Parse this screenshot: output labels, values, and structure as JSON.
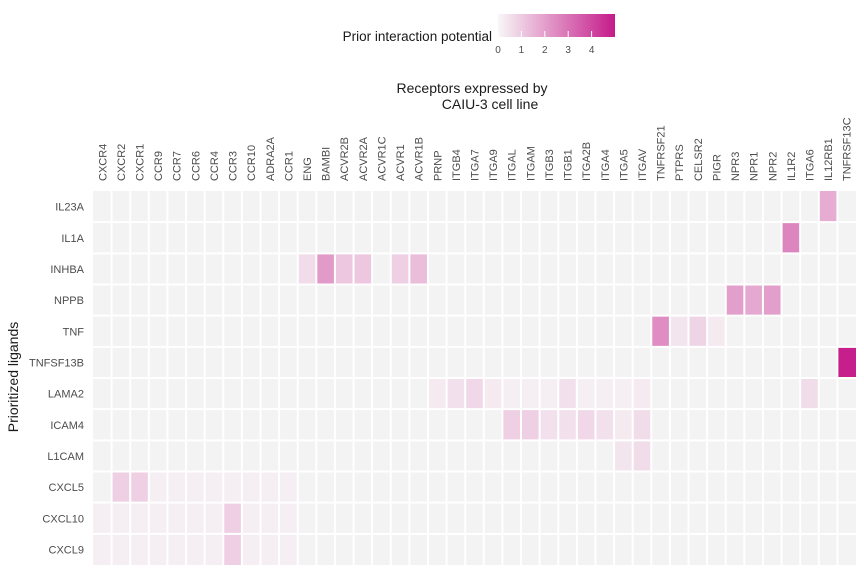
{
  "chart_data": {
    "type": "heatmap",
    "title_lines": [
      "Receptors expressed by",
      "CAIU-3 cell line"
    ],
    "ylabel": "Prioritized ligands",
    "xlabel": "",
    "legend": {
      "title": "Prior interaction potential",
      "position": "top",
      "range": [
        0,
        5
      ],
      "ticks": [
        0,
        1,
        2,
        3,
        4
      ],
      "low_color": "#f7f7f7",
      "high_color": "#c51b8a"
    },
    "background_color": "#f3f3f3",
    "grid_color": "#ffffff",
    "x": [
      "CXCR4",
      "CXCR2",
      "CXCR1",
      "CCR9",
      "CCR7",
      "CCR6",
      "CCR4",
      "CCR3",
      "CCR10",
      "ADRA2A",
      "CCR1",
      "ENG",
      "BAMBI",
      "ACVR2B",
      "ACVR2A",
      "ACVR1C",
      "ACVR1",
      "ACVR1B",
      "PRNP",
      "ITGB4",
      "ITGA7",
      "ITGA9",
      "ITGAL",
      "ITGAM",
      "ITGB3",
      "ITGB1",
      "ITGA2B",
      "ITGA4",
      "ITGA5",
      "ITGAV",
      "TNFRSF21",
      "PTPRS",
      "CELSR2",
      "PIGR",
      "NPR3",
      "NPR1",
      "NPR2",
      "IL1R2",
      "ITGA6",
      "IL12RB1",
      "TNFRSF13C"
    ],
    "y": [
      "IL23A",
      "IL1A",
      "INHBA",
      "NPPB",
      "TNF",
      "TNFSF13B",
      "LAMA2",
      "ICAM4",
      "L1CAM",
      "CXCL5",
      "CXCL10",
      "CXCL9"
    ],
    "values": [
      [
        0,
        0,
        0,
        0,
        0,
        0,
        0,
        0,
        0,
        0,
        0,
        0,
        0,
        0,
        0,
        0,
        0,
        0,
        0,
        0,
        0,
        0,
        0,
        0,
        0,
        0,
        0,
        0,
        0,
        0,
        0,
        0,
        0,
        0,
        0,
        0,
        0,
        0,
        0,
        1.7,
        0
      ],
      [
        0,
        0,
        0,
        0,
        0,
        0,
        0,
        0,
        0,
        0,
        0,
        0,
        0,
        0,
        0,
        0,
        0,
        0,
        0,
        0,
        0,
        0,
        0,
        0,
        0,
        0,
        0,
        0,
        0,
        0,
        0,
        0,
        0,
        0,
        0,
        0,
        0,
        2.6,
        0,
        0,
        0
      ],
      [
        0,
        0,
        0,
        0,
        0,
        0,
        0,
        0,
        0,
        0,
        0,
        0.6,
        2.1,
        1.1,
        1.1,
        0,
        0.9,
        1.3,
        0,
        0,
        0,
        0,
        0,
        0,
        0,
        0,
        0,
        0,
        0,
        0,
        0,
        0,
        0,
        0,
        0,
        0,
        0,
        0,
        0,
        0,
        0
      ],
      [
        0,
        0,
        0,
        0,
        0,
        0,
        0,
        0,
        0,
        0,
        0,
        0,
        0,
        0,
        0,
        0,
        0,
        0,
        0,
        0,
        0,
        0,
        0,
        0,
        0,
        0,
        0,
        0,
        0,
        0,
        0,
        0,
        0,
        0,
        2.0,
        1.8,
        2.0,
        0,
        0,
        0,
        0
      ],
      [
        0,
        0,
        0,
        0,
        0,
        0,
        0,
        0,
        0,
        0,
        0,
        0,
        0,
        0,
        0,
        0,
        0,
        0,
        0,
        0,
        0,
        0,
        0,
        0,
        0,
        0,
        0,
        0,
        0,
        0,
        2.4,
        0.4,
        0.8,
        0.3,
        0,
        0,
        0,
        0,
        0,
        0,
        0
      ],
      [
        0,
        0,
        0,
        0,
        0,
        0,
        0,
        0,
        0,
        0,
        0,
        0,
        0,
        0,
        0,
        0,
        0,
        0,
        0,
        0,
        0,
        0,
        0,
        0,
        0,
        0,
        0,
        0,
        0,
        0,
        0,
        0,
        0,
        0,
        0,
        0,
        0,
        0,
        0,
        0,
        4.9
      ],
      [
        0,
        0,
        0,
        0,
        0,
        0,
        0,
        0,
        0,
        0,
        0,
        0,
        0,
        0,
        0,
        0,
        0,
        0,
        0.3,
        0.5,
        0.7,
        0.3,
        0.2,
        0.2,
        0.2,
        0.5,
        0.2,
        0.2,
        0.2,
        0.3,
        0,
        0,
        0,
        0,
        0,
        0,
        0,
        0,
        0.6,
        0,
        0
      ],
      [
        0,
        0,
        0,
        0,
        0,
        0,
        0,
        0,
        0,
        0,
        0,
        0,
        0,
        0,
        0,
        0,
        0,
        0,
        0,
        0,
        0,
        0,
        0.9,
        0.9,
        0.5,
        0.5,
        0.7,
        0.5,
        0.3,
        0.6,
        0,
        0,
        0,
        0,
        0,
        0,
        0,
        0,
        0,
        0,
        0
      ],
      [
        0,
        0,
        0,
        0,
        0,
        0,
        0,
        0,
        0,
        0,
        0,
        0,
        0,
        0,
        0,
        0,
        0,
        0,
        0,
        0,
        0,
        0,
        0,
        0,
        0,
        0,
        0,
        0,
        0.4,
        0.6,
        0,
        0,
        0,
        0,
        0,
        0,
        0,
        0,
        0,
        0,
        0
      ],
      [
        0,
        0.9,
        0.9,
        0.2,
        0.2,
        0.2,
        0.2,
        0.2,
        0.2,
        0.2,
        0.2,
        0,
        0,
        0,
        0,
        0,
        0,
        0,
        0,
        0,
        0,
        0,
        0,
        0,
        0,
        0,
        0,
        0,
        0,
        0,
        0,
        0,
        0,
        0,
        0,
        0,
        0,
        0,
        0,
        0,
        0
      ],
      [
        0.2,
        0.2,
        0.2,
        0.2,
        0.2,
        0.2,
        0.2,
        0.9,
        0.2,
        0.2,
        0.2,
        0,
        0,
        0,
        0,
        0,
        0,
        0,
        0,
        0,
        0,
        0,
        0,
        0,
        0,
        0,
        0,
        0,
        0,
        0,
        0,
        0,
        0,
        0,
        0,
        0,
        0,
        0,
        0,
        0,
        0
      ],
      [
        0.2,
        0.2,
        0.2,
        0.2,
        0.2,
        0.2,
        0.2,
        0.9,
        0.2,
        0.2,
        0.2,
        0,
        0,
        0,
        0,
        0,
        0,
        0,
        0,
        0,
        0,
        0,
        0,
        0,
        0,
        0,
        0,
        0,
        0,
        0,
        0,
        0,
        0,
        0,
        0,
        0,
        0,
        0,
        0,
        0,
        0
      ]
    ]
  }
}
